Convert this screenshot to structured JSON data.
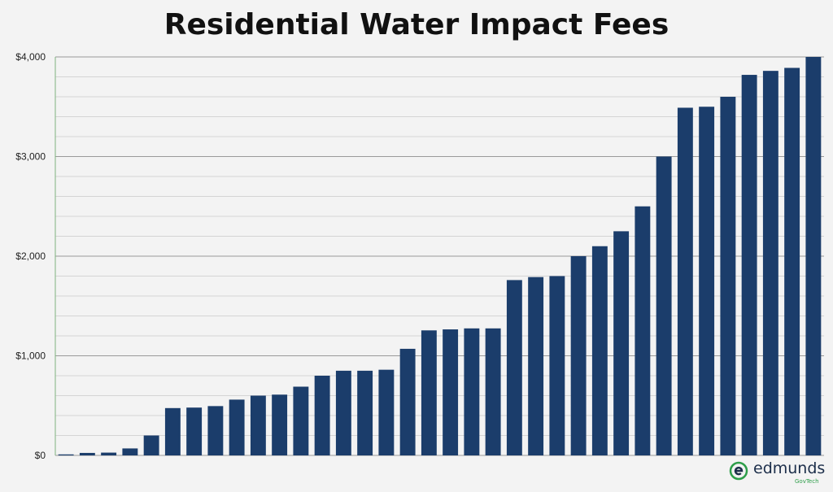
{
  "title": "Residential Water Impact Fees",
  "colors": {
    "bar": "#1b3d6b",
    "grid_major": "#9a9a9a",
    "grid_minor": "#d4d4d4",
    "axis": "#7fb37f",
    "background": "#f3f3f3"
  },
  "logo": {
    "word": "edmunds",
    "sub": "GovTech",
    "icon": "edmunds-e-icon"
  },
  "chart_data": {
    "type": "bar",
    "title": "Residential Water Impact Fees",
    "xlabel": "",
    "ylabel": "",
    "ylim": [
      0,
      4000
    ],
    "yticks": [
      "$0",
      "$1,000",
      "$2,000",
      "$3,000",
      "$4,000"
    ],
    "grid": true,
    "values": [
      10,
      25,
      28,
      70,
      200,
      475,
      480,
      495,
      560,
      600,
      610,
      690,
      800,
      850,
      850,
      860,
      1070,
      1255,
      1265,
      1275,
      1275,
      1760,
      1790,
      1800,
      2000,
      2100,
      2250,
      2500,
      3000,
      3490,
      3500,
      3600,
      3820,
      3860,
      3890,
      4000
    ]
  }
}
